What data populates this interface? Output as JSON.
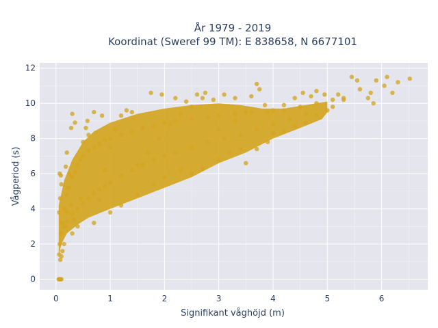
{
  "chart_data": {
    "type": "scatter",
    "title_lines": [
      "År 1979 - 2019",
      "Koordinat (Sweref 99 TM): E 838658, N 6677101"
    ],
    "xlabel": "Signifikant våghöjd (m)",
    "ylabel": "Vågperiod (s)",
    "xlim": [
      -0.3,
      6.85
    ],
    "ylim": [
      -0.6,
      12.3
    ],
    "xticks": [
      0,
      1,
      2,
      3,
      4,
      5,
      6
    ],
    "yticks": [
      0,
      2,
      4,
      6,
      8,
      10,
      12
    ],
    "grid": true,
    "legend": "none",
    "colors": {
      "marker": "#D4A520",
      "plot_background": "#E5E5EE",
      "grid": "#ffffff",
      "text": "#2a3f5f"
    },
    "points": [
      [
        0.05,
        0.0
      ],
      [
        0.06,
        0.0
      ],
      [
        0.07,
        0.0
      ],
      [
        0.08,
        0.0
      ],
      [
        0.09,
        0.0
      ],
      [
        0.1,
        0.0
      ],
      [
        0.06,
        1.4
      ],
      [
        0.08,
        1.1
      ],
      [
        0.1,
        1.3
      ],
      [
        0.12,
        1.6
      ],
      [
        0.07,
        2.0
      ],
      [
        0.09,
        2.6
      ],
      [
        0.11,
        3.2
      ],
      [
        0.06,
        3.8
      ],
      [
        0.08,
        4.6
      ],
      [
        0.1,
        5.4
      ],
      [
        0.07,
        6.0
      ],
      [
        0.09,
        5.9
      ],
      [
        0.15,
        2.0
      ],
      [
        0.18,
        3.0
      ],
      [
        0.2,
        3.8
      ],
      [
        0.22,
        5.2
      ],
      [
        0.18,
        6.4
      ],
      [
        0.2,
        7.2
      ],
      [
        0.25,
        6.0
      ],
      [
        0.28,
        4.2
      ],
      [
        0.3,
        2.6
      ],
      [
        0.33,
        3.4
      ],
      [
        0.4,
        3.0
      ],
      [
        0.45,
        4.6
      ],
      [
        0.5,
        7.8
      ],
      [
        0.55,
        8.6
      ],
      [
        0.6,
        8.2
      ],
      [
        0.58,
        9.0
      ],
      [
        0.28,
        8.6
      ],
      [
        0.3,
        9.4
      ],
      [
        0.35,
        8.9
      ],
      [
        0.7,
        9.5
      ],
      [
        0.85,
        9.3
      ],
      [
        0.7,
        3.2
      ],
      [
        0.8,
        4.5
      ],
      [
        0.9,
        6.2
      ],
      [
        1.0,
        7.5
      ],
      [
        1.1,
        8.5
      ],
      [
        1.2,
        9.3
      ],
      [
        1.3,
        9.6
      ],
      [
        1.4,
        9.5
      ],
      [
        1.0,
        3.8
      ],
      [
        1.2,
        4.2
      ],
      [
        1.5,
        4.8
      ],
      [
        1.8,
        5.4
      ],
      [
        2.0,
        5.8
      ],
      [
        2.3,
        6.2
      ],
      [
        2.5,
        6.0
      ],
      [
        2.7,
        6.3
      ],
      [
        1.5,
        6.5
      ],
      [
        1.7,
        7.2
      ],
      [
        1.9,
        8.0
      ],
      [
        2.1,
        8.8
      ],
      [
        2.3,
        9.4
      ],
      [
        2.5,
        9.8
      ],
      [
        2.7,
        10.3
      ],
      [
        2.9,
        10.2
      ],
      [
        1.75,
        10.6
      ],
      [
        1.95,
        10.5
      ],
      [
        2.2,
        10.3
      ],
      [
        2.4,
        10.1
      ],
      [
        2.6,
        10.5
      ],
      [
        2.75,
        10.6
      ],
      [
        3.1,
        10.5
      ],
      [
        3.3,
        10.3
      ],
      [
        3.0,
        6.8
      ],
      [
        3.2,
        7.2
      ],
      [
        3.4,
        7.4
      ],
      [
        3.5,
        6.6
      ],
      [
        3.7,
        7.4
      ],
      [
        3.9,
        7.8
      ],
      [
        4.0,
        8.3
      ],
      [
        3.0,
        8.5
      ],
      [
        3.3,
        9.0
      ],
      [
        3.5,
        9.5
      ],
      [
        3.6,
        10.4
      ],
      [
        3.7,
        11.1
      ],
      [
        3.75,
        10.8
      ],
      [
        3.85,
        9.9
      ],
      [
        4.0,
        9.6
      ],
      [
        4.2,
        9.9
      ],
      [
        4.4,
        10.3
      ],
      [
        4.55,
        10.6
      ],
      [
        4.7,
        10.4
      ],
      [
        4.8,
        10.7
      ],
      [
        4.95,
        10.5
      ],
      [
        4.2,
        8.4
      ],
      [
        4.4,
        8.7
      ],
      [
        4.6,
        8.9
      ],
      [
        4.8,
        9.3
      ],
      [
        5.0,
        9.6
      ],
      [
        5.1,
        9.8
      ],
      [
        5.2,
        10.5
      ],
      [
        5.3,
        10.2
      ],
      [
        5.45,
        11.5
      ],
      [
        5.55,
        11.3
      ],
      [
        5.6,
        10.8
      ],
      [
        5.75,
        10.3
      ],
      [
        5.8,
        10.6
      ],
      [
        5.85,
        10.0
      ],
      [
        5.9,
        11.3
      ],
      [
        6.05,
        11.0
      ],
      [
        6.1,
        11.5
      ],
      [
        6.2,
        10.6
      ],
      [
        6.3,
        11.2
      ],
      [
        6.52,
        11.4
      ],
      [
        0.15,
        4.0
      ],
      [
        0.2,
        4.8
      ],
      [
        0.25,
        5.2
      ],
      [
        0.3,
        5.8
      ],
      [
        0.35,
        6.1
      ],
      [
        0.4,
        6.5
      ],
      [
        0.45,
        6.8
      ],
      [
        0.5,
        7.0
      ],
      [
        0.6,
        7.3
      ],
      [
        0.7,
        7.5
      ],
      [
        0.8,
        7.7
      ],
      [
        0.9,
        7.9
      ],
      [
        1.0,
        8.0
      ],
      [
        1.2,
        8.2
      ],
      [
        1.4,
        8.4
      ],
      [
        1.6,
        8.6
      ],
      [
        1.8,
        8.7
      ],
      [
        2.0,
        8.9
      ],
      [
        2.2,
        9.0
      ],
      [
        2.5,
        9.1
      ],
      [
        2.8,
        9.2
      ],
      [
        3.0,
        9.3
      ],
      [
        3.3,
        9.4
      ],
      [
        3.6,
        9.5
      ],
      [
        3.9,
        9.5
      ],
      [
        4.2,
        9.6
      ],
      [
        4.5,
        9.8
      ],
      [
        4.8,
        10.0
      ],
      [
        5.1,
        10.2
      ],
      [
        5.3,
        10.3
      ],
      [
        0.1,
        2.6
      ],
      [
        0.15,
        3.0
      ],
      [
        0.2,
        3.3
      ],
      [
        0.3,
        3.7
      ],
      [
        0.4,
        4.0
      ],
      [
        0.5,
        4.3
      ],
      [
        0.6,
        4.6
      ],
      [
        0.7,
        4.9
      ],
      [
        0.8,
        5.1
      ],
      [
        0.9,
        5.3
      ],
      [
        1.0,
        5.5
      ],
      [
        1.2,
        5.9
      ],
      [
        1.4,
        6.2
      ],
      [
        1.6,
        6.5
      ],
      [
        1.8,
        6.8
      ],
      [
        2.0,
        7.0
      ],
      [
        2.2,
        7.2
      ],
      [
        2.5,
        7.5
      ],
      [
        2.8,
        7.8
      ],
      [
        3.1,
        8.0
      ],
      [
        3.4,
        8.2
      ],
      [
        3.7,
        8.5
      ],
      [
        4.0,
        8.8
      ],
      [
        4.3,
        9.1
      ],
      [
        4.6,
        9.4
      ]
    ]
  }
}
